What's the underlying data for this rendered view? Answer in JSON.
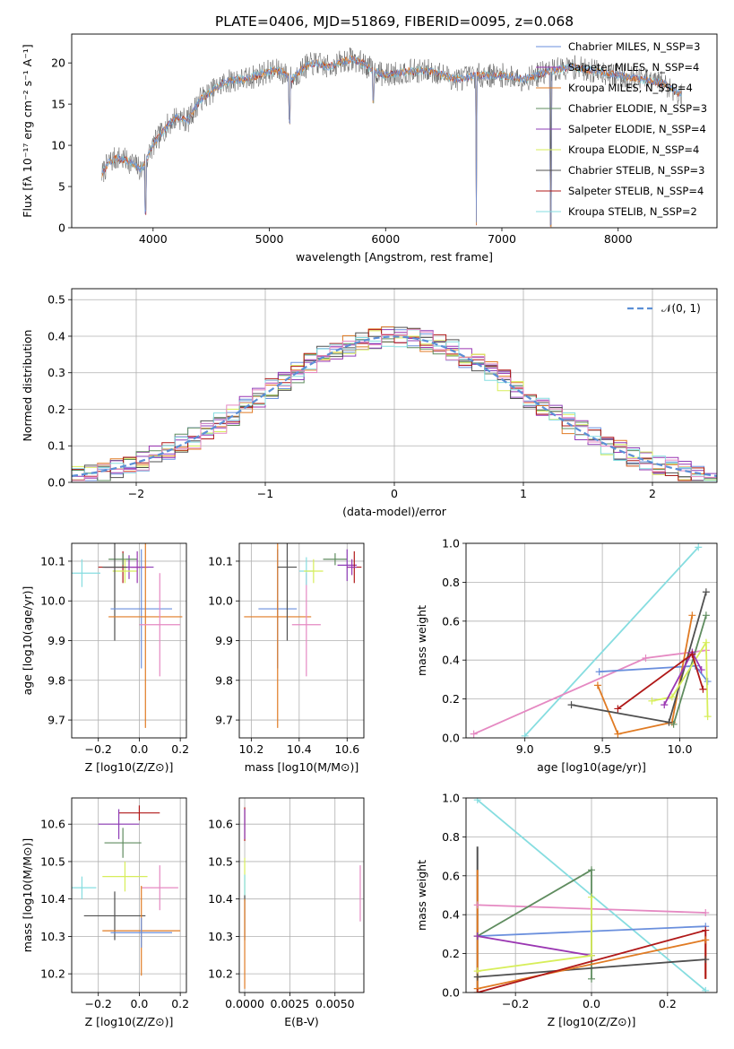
{
  "figure_title": "PLATE=0406, MJD=51869, FIBERID=0095, z=0.068",
  "colors": {
    "Chabrier MILES": "#6a8fdd",
    "Salpeter MILES": "#9a36b2",
    "Kroupa MILES": "#e07b24",
    "Chabrier ELODIE": "#5f8c5f",
    "Salpeter ELODIE": "#8e3db7",
    "Kroupa ELODIE": "#d7ee5a",
    "Chabrier STELIB": "#505050",
    "Salpeter STELIB": "#b01818",
    "Kroupa STELIB": "#86dde0",
    "pink": "#e589c2",
    "gauss": "#5b8fd6"
  },
  "chart_data": [
    {
      "id": "spectrum",
      "type": "line",
      "title": "PLATE=0406, MJD=51869, FIBERID=0095, z=0.068",
      "xlabel": "wavelength [Angstrom, rest frame]",
      "ylabel": "Flux [fλ 10⁻¹⁷ erg cm⁻² s⁻¹ A⁻¹]",
      "xlim": [
        3300,
        8850
      ],
      "ylim": [
        0,
        23.5
      ],
      "xticks": [
        4000,
        5000,
        6000,
        7000,
        8000
      ],
      "yticks": [
        0,
        5,
        10,
        15,
        20
      ],
      "legend_position": "top-right",
      "legend": [
        "Chabrier MILES, N_SSP=3",
        "Salpeter MILES, N_SSP=4",
        "Kroupa MILES, N_SSP=4",
        "Chabrier ELODIE, N_SSP=3",
        "Salpeter ELODIE, N_SSP=4",
        "Kroupa ELODIE, N_SSP=4",
        "Chabrier STELIB, N_SSP=3",
        "Salpeter STELIB, N_SSP=4",
        "Kroupa STELIB, N_SSP=2"
      ],
      "continuum": [
        [
          3560,
          6.5
        ],
        [
          3620,
          8
        ],
        [
          3700,
          8.5
        ],
        [
          3800,
          8
        ],
        [
          3900,
          7
        ],
        [
          4000,
          10
        ],
        [
          4100,
          12
        ],
        [
          4200,
          13.5
        ],
        [
          4300,
          13
        ],
        [
          4400,
          15.5
        ],
        [
          4500,
          16.5
        ],
        [
          4600,
          17.5
        ],
        [
          4700,
          18
        ],
        [
          4800,
          18
        ],
        [
          4900,
          18.5
        ],
        [
          5000,
          19
        ],
        [
          5100,
          19
        ],
        [
          5200,
          18
        ],
        [
          5300,
          19.5
        ],
        [
          5400,
          20
        ],
        [
          5500,
          19.5
        ],
        [
          5600,
          20
        ],
        [
          5700,
          20.5
        ],
        [
          5800,
          20
        ],
        [
          5900,
          19
        ],
        [
          6000,
          18.5
        ],
        [
          6200,
          19
        ],
        [
          6400,
          19
        ],
        [
          6600,
          18
        ],
        [
          6800,
          18.5
        ],
        [
          7000,
          18.5
        ],
        [
          7200,
          18
        ],
        [
          7400,
          19
        ],
        [
          7600,
          19.5
        ],
        [
          7800,
          19
        ],
        [
          8000,
          18.5
        ],
        [
          8200,
          18
        ],
        [
          8400,
          17.5
        ],
        [
          8550,
          16
        ]
      ],
      "dips": [
        [
          3935,
          1.5
        ],
        [
          5175,
          12.5
        ],
        [
          5895,
          15
        ],
        [
          6780,
          0
        ],
        [
          7420,
          0
        ]
      ]
    },
    {
      "id": "residuals",
      "type": "histogram",
      "xlabel": "(data-model)/error",
      "ylabel": "Normed distribution",
      "xlim": [
        -2.5,
        2.5
      ],
      "ylim": [
        0,
        0.53
      ],
      "xticks": [
        -2,
        -1,
        0,
        1,
        2
      ],
      "yticks": [
        0.0,
        0.1,
        0.2,
        0.3,
        0.4,
        0.5
      ],
      "legend": [
        "𝒩(0, 1)"
      ],
      "legend_position": "top-right"
    },
    {
      "id": "age_vs_Z",
      "type": "scatter",
      "xlabel": "Z [log10(Z/Z⊙)]",
      "ylabel": "age  [log10(age/yr)]",
      "xlim": [
        -0.33,
        0.23
      ],
      "ylim": [
        9.655,
        10.145
      ],
      "xticks": [
        -0.2,
        0.0,
        0.2
      ],
      "yticks": [
        9.7,
        9.8,
        9.9,
        10.0,
        10.1
      ],
      "points": [
        {
          "s": "Kroupa STELIB",
          "x": -0.28,
          "y": 10.07,
          "xerr": 0.09,
          "yerr": 0.035
        },
        {
          "s": "Salpeter STELIB",
          "x": -0.08,
          "y": 10.085,
          "xerr": 0.12,
          "yerr": 0.04
        },
        {
          "s": "Salpeter ELODIE",
          "x": -0.05,
          "y": 10.085,
          "xerr": 0.12,
          "yerr": 0.03
        },
        {
          "s": "Chabrier ELODIE",
          "x": -0.08,
          "y": 10.105,
          "xerr": 0.07,
          "yerr": 0.015
        },
        {
          "s": "Kroupa ELODIE",
          "x": -0.07,
          "y": 10.075,
          "xerr": 0.06,
          "yerr": 0.03
        },
        {
          "s": "Chabrier STELIB",
          "x": -0.12,
          "y": 10.085,
          "xerr": 0.06,
          "yerr": 0.185
        },
        {
          "s": "Salpeter MILES",
          "x": -0.01,
          "y": 10.085,
          "xerr": 0.03,
          "yerr": 0.04
        },
        {
          "s": "Chabrier MILES",
          "x": 0.01,
          "y": 9.98,
          "xerr": 0.15,
          "yerr": 0.15
        },
        {
          "s": "Kroupa MILES",
          "x": 0.03,
          "y": 9.96,
          "xerr": 0.18,
          "yerr": 0.28
        },
        {
          "s": "pink",
          "x": 0.1,
          "y": 9.94,
          "xerr": 0.1,
          "yerr": 0.13
        }
      ]
    },
    {
      "id": "age_vs_mass",
      "type": "scatter",
      "xlabel": "mass [log10(M/M⊙)]",
      "ylabel": "",
      "xlim": [
        10.15,
        10.67
      ],
      "ylim": [
        9.655,
        10.145
      ],
      "xticks": [
        10.2,
        10.4,
        10.6
      ],
      "yticks": [
        9.7,
        9.8,
        9.9,
        10.0,
        10.1
      ],
      "points": [
        {
          "s": "Chabrier MILES",
          "x": 10.31,
          "y": 9.98,
          "xerr": 0.08,
          "yerr": 0.15
        },
        {
          "s": "Kroupa MILES",
          "x": 10.31,
          "y": 9.96,
          "xerr": 0.14,
          "yerr": 0.28
        },
        {
          "s": "Chabrier STELIB",
          "x": 10.35,
          "y": 10.085,
          "xerr": 0.04,
          "yerr": 0.185
        },
        {
          "s": "pink",
          "x": 10.43,
          "y": 9.94,
          "xerr": 0.06,
          "yerr": 0.13
        },
        {
          "s": "Kroupa STELIB",
          "x": 10.43,
          "y": 10.075,
          "xerr": 0.03,
          "yerr": 0.035
        },
        {
          "s": "Kroupa ELODIE",
          "x": 10.46,
          "y": 10.075,
          "xerr": 0.04,
          "yerr": 0.03
        },
        {
          "s": "Chabrier ELODIE",
          "x": 10.55,
          "y": 10.105,
          "xerr": 0.05,
          "yerr": 0.015
        },
        {
          "s": "Salpeter ELODIE",
          "x": 10.6,
          "y": 10.09,
          "xerr": 0.04,
          "yerr": 0.04
        },
        {
          "s": "Salpeter STELIB",
          "x": 10.63,
          "y": 10.085,
          "xerr": 0.03,
          "yerr": 0.04
        },
        {
          "s": "Salpeter MILES",
          "x": 10.62,
          "y": 10.085,
          "xerr": 0.02,
          "yerr": 0.02
        }
      ]
    },
    {
      "id": "weight_vs_age",
      "type": "line",
      "xlabel": "age  [log10(age/yr)]",
      "ylabel": "mass weight",
      "xlim": [
        8.62,
        10.24
      ],
      "ylim": [
        0.0,
        1.0
      ],
      "xticks": [
        9.0,
        9.5,
        10.0
      ],
      "yticks": [
        0.0,
        0.2,
        0.4,
        0.6,
        0.8,
        1.0
      ],
      "lines": [
        {
          "s": "Kroupa STELIB",
          "pts": [
            [
              9.0,
              0.01
            ],
            [
              10.12,
              0.98
            ]
          ]
        },
        {
          "s": "pink",
          "pts": [
            [
              8.67,
              0.02
            ],
            [
              9.78,
              0.41
            ],
            [
              10.17,
              0.45
            ]
          ]
        },
        {
          "s": "Chabrier MILES",
          "pts": [
            [
              9.48,
              0.34
            ],
            [
              10.1,
              0.37
            ],
            [
              10.18,
              0.29
            ]
          ]
        },
        {
          "s": "Kroupa MILES",
          "pts": [
            [
              9.47,
              0.27
            ],
            [
              9.6,
              0.02
            ],
            [
              9.95,
              0.08
            ],
            [
              10.08,
              0.63
            ]
          ]
        },
        {
          "s": "Chabrier STELIB",
          "pts": [
            [
              9.3,
              0.17
            ],
            [
              9.93,
              0.08
            ],
            [
              10.17,
              0.75
            ]
          ]
        },
        {
          "s": "Chabrier ELODIE",
          "pts": [
            [
              9.96,
              0.07
            ],
            [
              10.17,
              0.63
            ]
          ]
        },
        {
          "s": "Kroupa ELODIE",
          "pts": [
            [
              9.82,
              0.19
            ],
            [
              9.95,
              0.21
            ],
            [
              10.17,
              0.49
            ],
            [
              10.18,
              0.11
            ]
          ]
        },
        {
          "s": "Salpeter MILES",
          "pts": [
            [
              9.9,
              0.17
            ],
            [
              10.08,
              0.44
            ],
            [
              10.14,
              0.35
            ]
          ]
        },
        {
          "s": "Salpeter STELIB",
          "pts": [
            [
              9.6,
              0.15
            ],
            [
              10.08,
              0.43
            ],
            [
              10.15,
              0.25
            ]
          ]
        }
      ]
    },
    {
      "id": "mass_vs_Z",
      "type": "scatter",
      "xlabel": "Z [log10(Z/Z⊙)]",
      "ylabel": "mass [log10(M/M⊙)]",
      "xlim": [
        -0.33,
        0.23
      ],
      "ylim": [
        10.15,
        10.67
      ],
      "xticks": [
        -0.2,
        0.0,
        0.2
      ],
      "yticks": [
        10.2,
        10.3,
        10.4,
        10.5,
        10.6
      ],
      "points": [
        {
          "s": "Salpeter STELIB",
          "x": 0.0,
          "y": 10.63,
          "xerr": 0.1,
          "yerr": 0.02
        },
        {
          "s": "Salpeter ELODIE",
          "x": -0.1,
          "y": 10.6,
          "xerr": 0.1,
          "yerr": 0.04
        },
        {
          "s": "Chabrier ELODIE",
          "x": -0.08,
          "y": 10.55,
          "xerr": 0.09,
          "yerr": 0.04
        },
        {
          "s": "Kroupa ELODIE",
          "x": -0.07,
          "y": 10.46,
          "xerr": 0.11,
          "yerr": 0.04
        },
        {
          "s": "Kroupa STELIB",
          "x": -0.28,
          "y": 10.43,
          "xerr": 0.07,
          "yerr": 0.03
        },
        {
          "s": "pink",
          "x": 0.1,
          "y": 10.43,
          "xerr": 0.09,
          "yerr": 0.06
        },
        {
          "s": "Chabrier STELIB",
          "x": -0.12,
          "y": 10.355,
          "xerr": 0.15,
          "yerr": 0.065
        },
        {
          "s": "Kroupa MILES",
          "x": 0.01,
          "y": 10.315,
          "xerr": 0.19,
          "yerr": 0.12
        },
        {
          "s": "Chabrier MILES",
          "x": 0.01,
          "y": 10.31,
          "xerr": 0.15,
          "yerr": 0.04
        }
      ]
    },
    {
      "id": "mass_vs_EBV",
      "type": "scatter",
      "xlabel": "E(B-V)",
      "ylabel": "",
      "xlim": [
        -0.0003,
        0.0066
      ],
      "ylim": [
        10.15,
        10.67
      ],
      "xticks": [
        0.0,
        0.0025,
        0.005
      ],
      "xticklabels": [
        "0.0000",
        "0.0025",
        "0.0050"
      ],
      "yticks": [
        10.2,
        10.3,
        10.4,
        10.5,
        10.6
      ],
      "points": [
        {
          "s": "Salpeter STELIB",
          "x": 0.0,
          "y": 10.6,
          "xerr": 0,
          "yerr": 0.045
        },
        {
          "s": "Salpeter ELODIE",
          "x": 0.0,
          "y": 10.6,
          "xerr": 0,
          "yerr": 0.04
        },
        {
          "s": "Kroupa ELODIE",
          "x": 0.0,
          "y": 10.46,
          "xerr": 0,
          "yerr": 0.05
        },
        {
          "s": "Kroupa STELIB",
          "x": 0.0,
          "y": 10.43,
          "xerr": 0,
          "yerr": 0.035
        },
        {
          "s": "Chabrier STELIB",
          "x": 0.0,
          "y": 10.35,
          "xerr": 0,
          "yerr": 0.06
        },
        {
          "s": "Kroupa MILES",
          "x": 0.0,
          "y": 10.28,
          "xerr": 0,
          "yerr": 0.12
        },
        {
          "s": "pink",
          "x": 0.0064,
          "y": 10.415,
          "xerr": 0,
          "yerr": 0.075
        }
      ]
    },
    {
      "id": "weight_vs_Z",
      "type": "line",
      "xlabel": "Z [log10(Z/Z⊙)]",
      "ylabel": "mass weight",
      "xlim": [
        -0.33,
        0.33
      ],
      "ylim": [
        0.0,
        1.0
      ],
      "xticks": [
        -0.2,
        0.0,
        0.2
      ],
      "yticks": [
        0.0,
        0.2,
        0.4,
        0.6,
        0.8,
        1.0
      ],
      "lines": [
        {
          "s": "Kroupa STELIB",
          "pts": [
            [
              -0.3,
              0.99
            ],
            [
              0.3,
              0.01
            ]
          ]
        },
        {
          "s": "pink",
          "pts": [
            [
              -0.3,
              0.45
            ],
            [
              0.3,
              0.41
            ]
          ]
        },
        {
          "s": "Chabrier MILES",
          "pts": [
            [
              -0.3,
              0.29
            ],
            [
              0.3,
              0.34
            ]
          ]
        },
        {
          "s": "Chabrier ELODIE",
          "pts": [
            [
              -0.3,
              0.29
            ],
            [
              0.0,
              0.63
            ],
            [
              0.0,
              0.07
            ]
          ]
        },
        {
          "s": "Salpeter MILES",
          "pts": [
            [
              -0.3,
              0.29
            ],
            [
              0.0,
              0.19
            ]
          ]
        },
        {
          "s": "Kroupa ELODIE",
          "pts": [
            [
              -0.3,
              0.11
            ],
            [
              0.0,
              0.19
            ],
            [
              0.0,
              0.49
            ]
          ]
        },
        {
          "s": "Chabrier STELIB",
          "pts": [
            [
              -0.3,
              0.08
            ],
            [
              0.3,
              0.17
            ]
          ]
        },
        {
          "s": "Kroupa MILES",
          "pts": [
            [
              -0.3,
              0.02
            ],
            [
              0.3,
              0.27
            ]
          ]
        },
        {
          "s": "Salpeter STELIB",
          "pts": [
            [
              -0.3,
              0.0
            ],
            [
              0.3,
              0.32
            ]
          ]
        }
      ],
      "vertical_errors": [
        {
          "s": "Chabrier STELIB",
          "x": -0.3,
          "y0": 0.0,
          "y1": 0.75
        },
        {
          "s": "Kroupa MILES",
          "x": -0.3,
          "y0": 0.0,
          "y1": 0.63
        },
        {
          "s": "Salpeter MILES",
          "x": 0.0,
          "y0": 0.19,
          "y1": 0.35
        },
        {
          "s": "Kroupa MILES",
          "x": 0.3,
          "y0": 0.07,
          "y1": 0.27
        },
        {
          "s": "Salpeter STELIB",
          "x": 0.3,
          "y0": 0.07,
          "y1": 0.32
        }
      ]
    }
  ]
}
